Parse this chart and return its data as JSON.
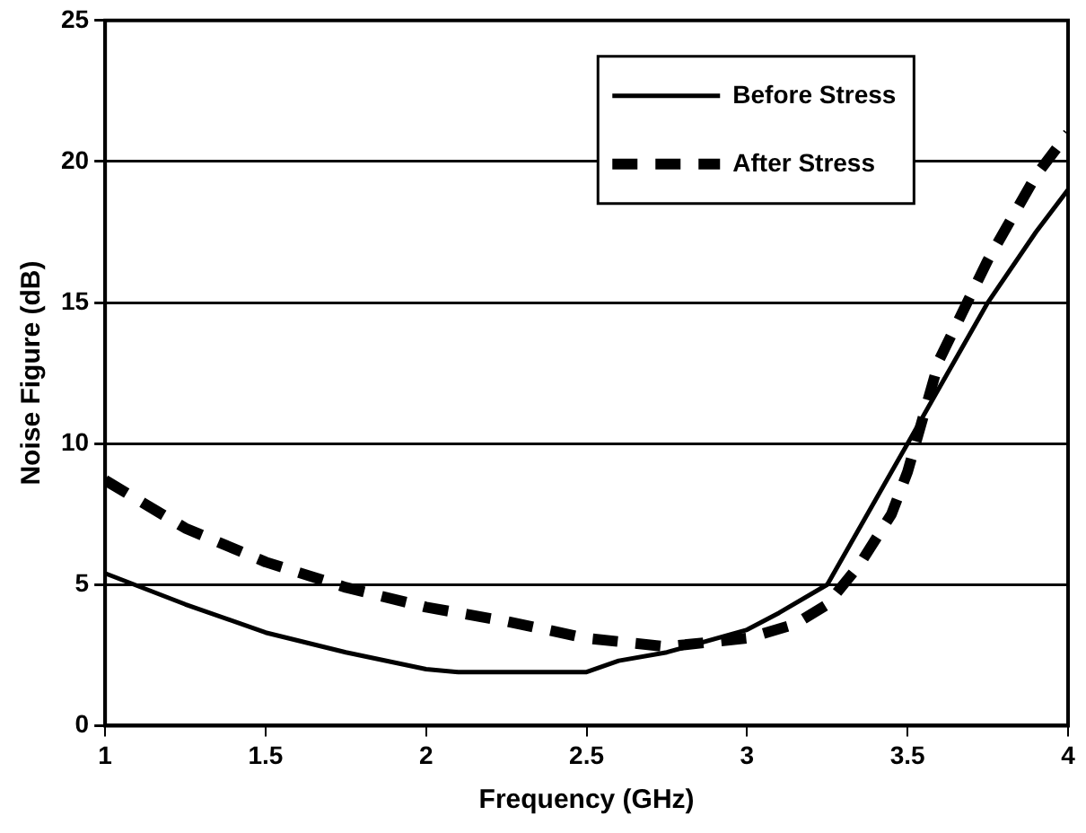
{
  "chart_data": {
    "type": "line",
    "xlabel": "Frequency (GHz)",
    "ylabel": "Noise Figure (dB)",
    "xlim": [
      1,
      4
    ],
    "xticks": [
      1,
      1.5,
      2,
      2.5,
      3,
      3.5,
      4
    ],
    "ylim": [
      0,
      25
    ],
    "yticks": [
      0,
      5,
      10,
      15,
      20,
      25
    ],
    "grid": "y",
    "legend": "top right",
    "marker": "none",
    "series": [
      {
        "name": "Before Stress",
        "color": "#000000",
        "line_style": "solid",
        "x": [
          1,
          1.25,
          1.5,
          1.75,
          2,
          2.1,
          2.25,
          2.5,
          2.6,
          2.75,
          3,
          3.1,
          3.25,
          3.4,
          3.5,
          3.6,
          3.75,
          3.9,
          4
        ],
        "values": [
          5.4,
          4.3,
          3.3,
          2.6,
          2.0,
          1.9,
          1.9,
          1.9,
          2.3,
          2.6,
          3.4,
          4.0,
          5.0,
          8.0,
          10,
          12,
          15,
          17.5,
          19
        ]
      },
      {
        "name": "After Stress",
        "color": "#000000",
        "line_style": "dashed",
        "x": [
          1,
          1.25,
          1.5,
          1.75,
          2,
          2.25,
          2.5,
          2.75,
          3,
          3.15,
          3.25,
          3.35,
          3.45,
          3.5,
          3.6,
          3.75,
          3.9,
          4
        ],
        "values": [
          8.7,
          7.0,
          5.8,
          4.9,
          4.2,
          3.7,
          3.1,
          2.8,
          3.1,
          3.6,
          4.3,
          5.7,
          7.5,
          9,
          13,
          16.5,
          19.5,
          21
        ]
      }
    ]
  }
}
